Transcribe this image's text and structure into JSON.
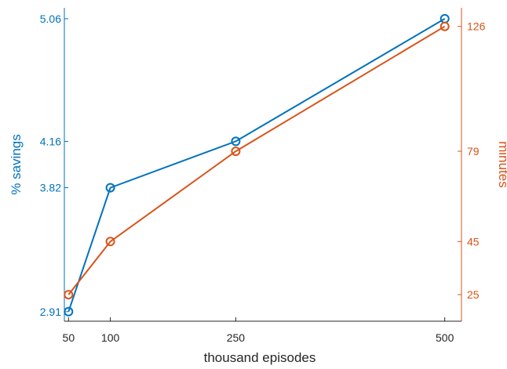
{
  "chart_data": {
    "type": "line",
    "xlabel": "thousand episodes",
    "ylabel_left": "% savings",
    "ylabel_right": "minutes",
    "x": [
      50,
      100,
      250,
      500
    ],
    "x_ticks": [
      50,
      100,
      250,
      500
    ],
    "x_tick_labels": [
      "50",
      "100",
      "250",
      "500"
    ],
    "xlim": [
      45,
      520
    ],
    "y_left_ticks": [
      2.91,
      3.82,
      4.16,
      5.06
    ],
    "y_left_tick_labels": [
      "2.91",
      "3.82",
      "4.16",
      "5.06"
    ],
    "y_left_lim": [
      2.84,
      5.14
    ],
    "y_right_ticks": [
      25,
      45,
      79,
      126
    ],
    "y_right_tick_labels": [
      "25",
      "45",
      "79",
      "126"
    ],
    "y_right_lim": [
      15,
      133
    ],
    "grid": false,
    "series": [
      {
        "axis": "left",
        "color": "#0072BD",
        "marker": "circle",
        "values": [
          2.91,
          3.82,
          4.16,
          5.06
        ]
      },
      {
        "axis": "right",
        "color": "#D95319",
        "marker": "circle",
        "values": [
          25,
          45,
          79,
          126
        ]
      }
    ],
    "colors": {
      "left_axis": "#0072BD",
      "right_axis": "#D95319",
      "x_axis": "#262626"
    }
  }
}
